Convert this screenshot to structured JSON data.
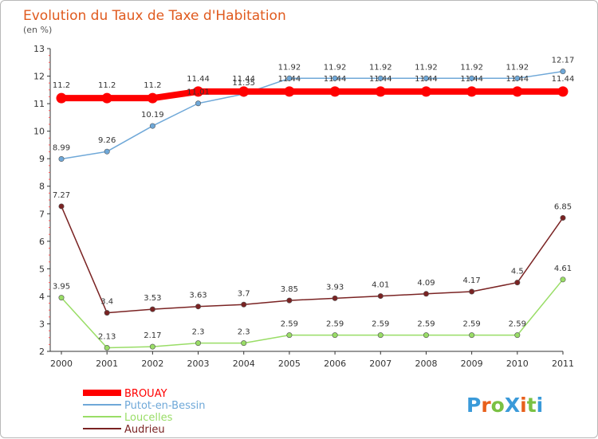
{
  "chart_data": {
    "type": "line",
    "title": "Evolution du Taux de Taxe d'Habitation",
    "subtitle": "(en %)",
    "x": [
      "2000",
      "2001",
      "2002",
      "2003",
      "2004",
      "2005",
      "2006",
      "2007",
      "2008",
      "2009",
      "2010",
      "2011"
    ],
    "ylim": [
      2,
      13
    ],
    "yticks": [
      "2",
      "3",
      "4",
      "5",
      "6",
      "7",
      "8",
      "9",
      "10",
      "11",
      "12",
      "13"
    ],
    "grid": false,
    "legend_position": "bottom-left",
    "series": [
      {
        "name": "BROUAY",
        "color": "#ff0000",
        "values": [
          11.2,
          11.2,
          11.2,
          11.44,
          11.44,
          11.44,
          11.44,
          11.44,
          11.44,
          11.44,
          11.44,
          11.44
        ],
        "labels": [
          "11.2",
          "11.2",
          "11.2",
          "11.44",
          "11.44",
          "11.44",
          "11.44",
          "11.44",
          "11.44",
          "11.44",
          "11.44",
          "11.44"
        ]
      },
      {
        "name": "Putot-en-Bessin",
        "color": "#6fa8d8",
        "values": [
          8.99,
          9.26,
          10.19,
          11.01,
          11.35,
          11.92,
          11.92,
          11.92,
          11.92,
          11.92,
          11.92,
          12.17
        ],
        "labels": [
          "8.99",
          "9.26",
          "10.19",
          "11.01",
          "11.35",
          "11.92",
          "11.92",
          "11.92",
          "11.92",
          "11.92",
          "11.92",
          "12.17"
        ]
      },
      {
        "name": "Loucelles",
        "color": "#99dd66",
        "values": [
          3.95,
          2.13,
          2.17,
          2.3,
          2.3,
          2.59,
          2.59,
          2.59,
          2.59,
          2.59,
          2.59,
          4.61
        ],
        "labels": [
          "3.95",
          "2.13",
          "2.17",
          "2.3",
          "2.3",
          "2.59",
          "2.59",
          "2.59",
          "2.59",
          "2.59",
          "2.59",
          "4.61"
        ]
      },
      {
        "name": "Audrieu",
        "color": "#7a2323",
        "values": [
          7.27,
          3.4,
          3.53,
          3.63,
          3.7,
          3.85,
          3.93,
          4.01,
          4.09,
          4.17,
          4.5,
          6.85
        ],
        "labels": [
          "7.27",
          "3.4",
          "3.53",
          "3.63",
          "3.7",
          "3.85",
          "3.93",
          "4.01",
          "4.09",
          "4.17",
          "4.5",
          "6.85"
        ]
      }
    ]
  },
  "logo": {
    "text": "ProXiti",
    "colors": [
      "#3a9ad9",
      "#e8601c",
      "#7ac143",
      "#3a9ad9",
      "#e8601c",
      "#7ac143",
      "#3a9ad9"
    ]
  }
}
